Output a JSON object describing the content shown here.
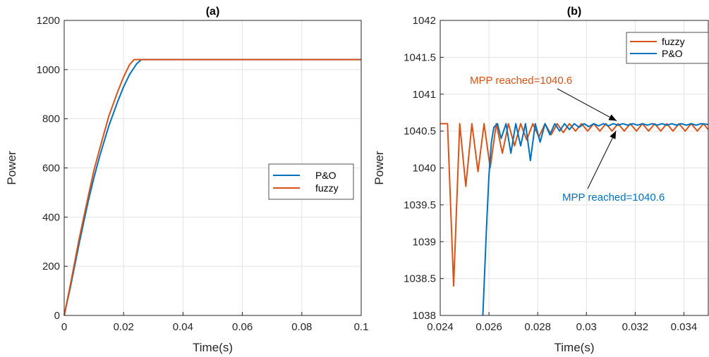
{
  "colors": {
    "po": "#0072BD",
    "fuzzy": "#D95319"
  },
  "chart_data": [
    {
      "type": "line",
      "title": "(a)",
      "xlabel": "Time(s)",
      "ylabel": "Power",
      "xlim": [
        0,
        0.1
      ],
      "ylim": [
        0,
        1200
      ],
      "xticks": [
        0,
        0.02,
        0.04,
        0.06,
        0.08,
        0.1
      ],
      "xtick_labels": [
        "0",
        "0.02",
        "0.04",
        "0.06",
        "0.08",
        "0.1"
      ],
      "yticks": [
        0,
        200,
        400,
        600,
        800,
        1000,
        1200
      ],
      "ytick_labels": [
        "0",
        "200",
        "400",
        "600",
        "800",
        "1000",
        "1200"
      ],
      "grid": true,
      "legend": {
        "placement": "right",
        "entries": [
          "P&O",
          "fuzzy"
        ]
      },
      "series": [
        {
          "name": "P&O",
          "color": "#0072BD",
          "x": [
            0,
            0.002,
            0.005,
            0.008,
            0.01,
            0.012,
            0.015,
            0.018,
            0.02,
            0.022,
            0.0245,
            0.026,
            0.1
          ],
          "y": [
            0,
            110,
            290,
            460,
            560,
            650,
            770,
            870,
            930,
            980,
            1025,
            1040.6,
            1040.6
          ]
        },
        {
          "name": "fuzzy",
          "color": "#D95319",
          "x": [
            0,
            0.002,
            0.005,
            0.008,
            0.01,
            0.012,
            0.015,
            0.018,
            0.02,
            0.022,
            0.0235,
            0.1
          ],
          "y": [
            0,
            120,
            310,
            480,
            590,
            680,
            810,
            910,
            970,
            1020,
            1040.6,
            1040.6
          ]
        }
      ]
    },
    {
      "type": "line",
      "title": "(b)",
      "xlabel": "Time(s)",
      "ylabel": "Power",
      "xlim": [
        0.024,
        0.035
      ],
      "ylim": [
        1038,
        1042
      ],
      "xticks": [
        0.024,
        0.026,
        0.028,
        0.03,
        0.032,
        0.034
      ],
      "xtick_labels": [
        "0.024",
        "0.026",
        "0.028",
        "0.03",
        "0.032",
        "0.034"
      ],
      "yticks": [
        1038,
        1038.5,
        1039,
        1039.5,
        1040,
        1040.5,
        1041,
        1041.5,
        1042
      ],
      "ytick_labels": [
        "1038",
        "1038.5",
        "1039",
        "1039.5",
        "1040",
        "1040.5",
        "1041",
        "1041.5",
        "1042"
      ],
      "grid": true,
      "legend": {
        "placement": "top-right",
        "entries": [
          "fuzzy",
          "P&O"
        ]
      },
      "series": [
        {
          "name": "fuzzy",
          "color": "#D95319",
          "x": [
            0.024,
            0.0243,
            0.02455,
            0.0248,
            0.02505,
            0.0253,
            0.02555,
            0.0258,
            0.02605,
            0.0263,
            0.02655,
            0.0268,
            0.02705,
            0.0273,
            0.02755,
            0.0278,
            0.02805,
            0.0283,
            0.02855,
            0.0288,
            0.02905,
            0.0293,
            0.02955,
            0.0298,
            0.03005,
            0.0303,
            0.03055,
            0.0308,
            0.03105,
            0.0313,
            0.03155,
            0.0318,
            0.03205,
            0.0323,
            0.03255,
            0.0328,
            0.03305,
            0.0333,
            0.03355,
            0.0338,
            0.03405,
            0.0343,
            0.03455,
            0.0348,
            0.035
          ],
          "y": [
            1040.6,
            1040.6,
            1038.4,
            1040.6,
            1039.75,
            1040.6,
            1039.95,
            1040.6,
            1040.0,
            1040.6,
            1040.2,
            1040.6,
            1040.3,
            1040.6,
            1040.38,
            1040.6,
            1040.42,
            1040.6,
            1040.45,
            1040.6,
            1040.48,
            1040.6,
            1040.5,
            1040.6,
            1040.5,
            1040.6,
            1040.5,
            1040.6,
            1040.5,
            1040.6,
            1040.5,
            1040.6,
            1040.5,
            1040.6,
            1040.5,
            1040.6,
            1040.5,
            1040.6,
            1040.5,
            1040.6,
            1040.5,
            1040.6,
            1040.5,
            1040.6,
            1040.52
          ]
        },
        {
          "name": "P&O",
          "color": "#0072BD",
          "x": [
            0.02575,
            0.0259,
            0.026,
            0.0261,
            0.0262,
            0.02635,
            0.0265,
            0.0267,
            0.0269,
            0.0271,
            0.0273,
            0.0275,
            0.0277,
            0.0279,
            0.0281,
            0.0283,
            0.0285,
            0.0287,
            0.0289,
            0.0291,
            0.0293,
            0.0295,
            0.0297,
            0.0299,
            0.0301,
            0.0303,
            0.0305,
            0.0307,
            0.0309,
            0.0311,
            0.0313,
            0.0315,
            0.0317,
            0.0319,
            0.0321,
            0.0323,
            0.0325,
            0.0327,
            0.0329,
            0.0331,
            0.0333,
            0.0335,
            0.0337,
            0.0339,
            0.0341,
            0.0343,
            0.0345,
            0.0347,
            0.035
          ],
          "y": [
            1038.0,
            1039.2,
            1039.9,
            1040.35,
            1040.55,
            1040.6,
            1040.4,
            1040.6,
            1040.2,
            1040.6,
            1040.3,
            1040.6,
            1040.1,
            1040.6,
            1040.35,
            1040.6,
            1040.45,
            1040.6,
            1040.5,
            1040.6,
            1040.52,
            1040.6,
            1040.55,
            1040.6,
            1040.56,
            1040.6,
            1040.57,
            1040.6,
            1040.57,
            1040.6,
            1040.58,
            1040.6,
            1040.58,
            1040.6,
            1040.58,
            1040.6,
            1040.58,
            1040.6,
            1040.58,
            1040.6,
            1040.58,
            1040.6,
            1040.58,
            1040.6,
            1040.58,
            1040.6,
            1040.58,
            1040.6,
            1040.59
          ]
        }
      ],
      "annotations": [
        {
          "text": "MPP reached=1040.6",
          "color": "#D95319",
          "target_x": 0.0313,
          "target_y": 1040.6
        },
        {
          "text": "MPP reached=1040.6",
          "color": "#0072BD",
          "target_x": 0.0313,
          "target_y": 1040.55
        }
      ]
    }
  ]
}
